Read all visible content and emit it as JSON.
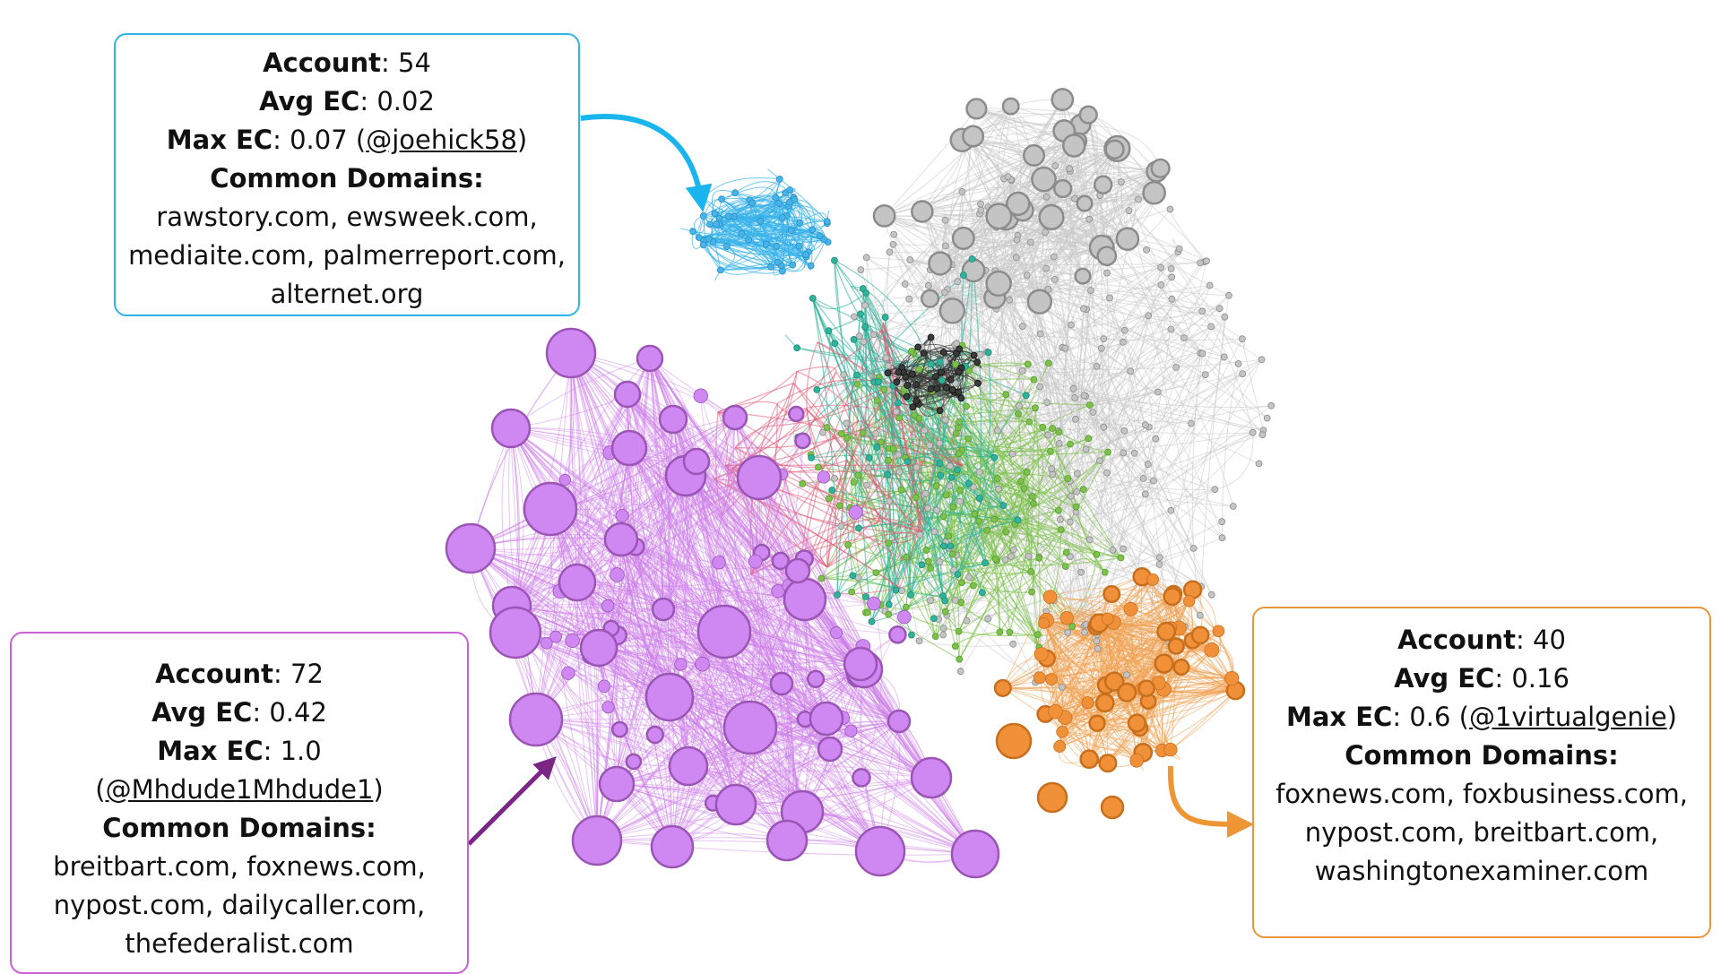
{
  "annotations": {
    "blue": {
      "account_label": "Account",
      "account_value": ": 54",
      "avg_label": "Avg EC",
      "avg_value": ": 0.02",
      "max_label": "Max EC",
      "max_value": ": 0.07 (",
      "max_handle": "@joehick58",
      "max_close": ")",
      "domains_label": "Common Domains:",
      "domains_lines": [
        "rawstory.com, ewsweek.com,",
        "mediaite.com, palmerreport.com,",
        "alternet.org"
      ],
      "color": "#2db4e8"
    },
    "purple": {
      "account_label": "Account",
      "account_value": ": 72",
      "avg_label": "Avg EC",
      "avg_value": ": 0.42",
      "max_label": "Max EC",
      "max_value": ": 1.0 (",
      "max_handle": "@Mhdude1Mhdude1",
      "max_close": ")",
      "domains_label": "Common Domains:",
      "domains_lines": [
        "breitbart.com, foxnews.com,",
        "nypost.com, dailycaller.com,",
        "thefederalist.com"
      ],
      "color": "#cc5fd8"
    },
    "orange": {
      "account_label": "Account",
      "account_value": ": 40",
      "avg_label": "Avg EC",
      "avg_value": ": 0.16",
      "max_label": "Max EC",
      "max_value": ": 0.6 (",
      "max_handle": "@1virtualgenie",
      "max_close": ")",
      "domains_label": "Common Domains:",
      "domains_lines": [
        "foxnews.com, foxbusiness.com,",
        "nypost.com, breitbart.com,",
        "washingtonexaminer.com"
      ],
      "color": "#e8963a"
    }
  },
  "colors": {
    "purple_node": "#cf88f2",
    "purple_stroke": "#9b55b4",
    "purple_edge": "#cc7de8",
    "orange_node": "#f0913a",
    "orange_stroke": "#c86f1e",
    "orange_edge": "#f0a050",
    "blue_node": "#46b4ea",
    "blue_edge": "#38b2ea",
    "gray_node": "#c4c4c4",
    "gray_stroke": "#8c8c8c",
    "gray_edge": "#c9c9c9",
    "dark_node": "#3a3a3a",
    "red_edge": "#e05a72",
    "green_edge": "#7cc24a",
    "teal_edge": "#2fb39a",
    "arrow_purple": "#7b2584"
  }
}
